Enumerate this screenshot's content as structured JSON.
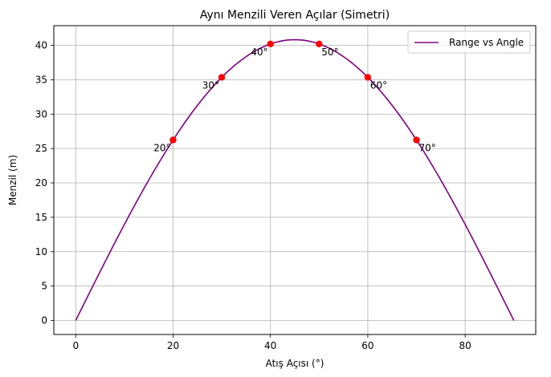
{
  "chart_data": {
    "type": "line",
    "title": "Aynı Menzili Veren Açılar (Simetri)",
    "xlabel": "Atış Açısı (°)",
    "ylabel": "Menzil (m)",
    "xlim": [
      -4.5,
      94.5
    ],
    "ylim": [
      -2.04,
      42.86
    ],
    "xticks": [
      0,
      20,
      40,
      60,
      80
    ],
    "yticks": [
      0,
      5,
      10,
      15,
      20,
      25,
      30,
      35,
      40
    ],
    "grid": true,
    "legend_position": "top-right",
    "curve": {
      "name": "Range vs Angle",
      "color": "#800080",
      "max_range": 40.82,
      "x_range": [
        0,
        90
      ]
    },
    "points": {
      "color": "#ff0000",
      "data": [
        {
          "x": 20,
          "y": 26.24,
          "label": "20°"
        },
        {
          "x": 30,
          "y": 35.35,
          "label": "30°"
        },
        {
          "x": 40,
          "y": 40.2,
          "label": "40°"
        },
        {
          "x": 50,
          "y": 40.2,
          "label": "50°"
        },
        {
          "x": 60,
          "y": 35.35,
          "label": "60°"
        },
        {
          "x": 70,
          "y": 26.24,
          "label": "70°"
        }
      ]
    }
  }
}
